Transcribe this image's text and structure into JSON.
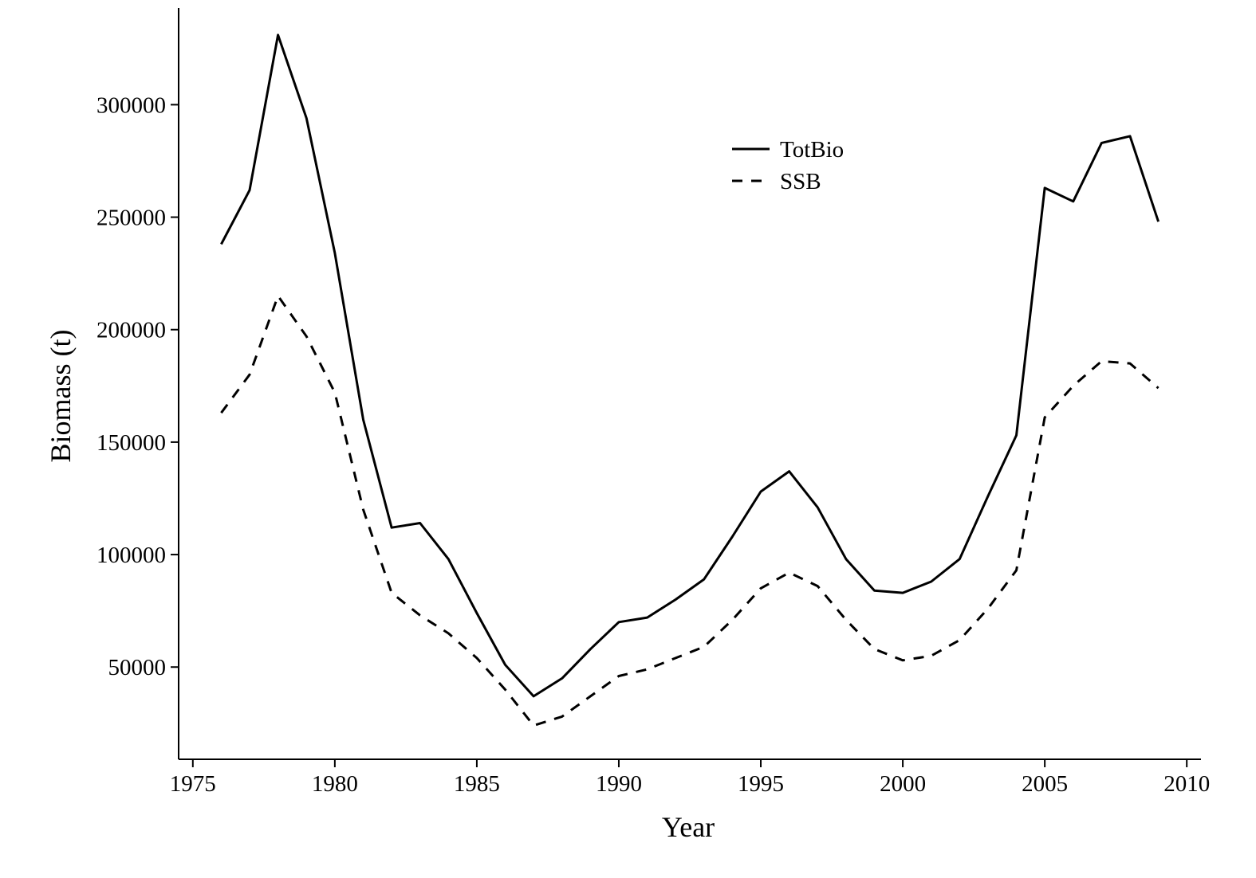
{
  "chart_data": {
    "type": "line",
    "title": "",
    "xlabel": "Year",
    "ylabel": "Biomass (t)",
    "xlim": [
      1974.5,
      2010.5
    ],
    "ylim": [
      9000,
      343000
    ],
    "xticks": [
      1975,
      1980,
      1985,
      1990,
      1995,
      2000,
      2005,
      2010
    ],
    "yticks": [
      50000,
      100000,
      150000,
      200000,
      250000,
      300000
    ],
    "xtick_labels": [
      "1975",
      "1980",
      "1985",
      "1990",
      "1995",
      "2000",
      "2005",
      "2010"
    ],
    "ytick_labels": [
      "50000",
      "100000",
      "150000",
      "200000",
      "250000",
      "300000"
    ],
    "grid": false,
    "legend_position": "top-right (inside plot)",
    "x": [
      1976,
      1977,
      1978,
      1979,
      1980,
      1981,
      1982,
      1983,
      1984,
      1985,
      1986,
      1987,
      1988,
      1989,
      1990,
      1991,
      1992,
      1993,
      1994,
      1995,
      1996,
      1997,
      1998,
      1999,
      2000,
      2001,
      2002,
      2003,
      2004,
      2005,
      2006,
      2007,
      2008,
      2009
    ],
    "series": [
      {
        "name": "TotBio",
        "line_style": "solid",
        "color": "#000000",
        "values": [
          238000,
          262000,
          331000,
          294000,
          234000,
          160000,
          112000,
          114000,
          98000,
          74000,
          51000,
          37000,
          45000,
          58000,
          70000,
          72000,
          80000,
          89000,
          108000,
          128000,
          137000,
          121000,
          98000,
          84000,
          83000,
          88000,
          98000,
          126000,
          153000,
          263000,
          257000,
          283000,
          286000,
          248000
        ]
      },
      {
        "name": "SSB",
        "line_style": "dashed",
        "color": "#000000",
        "values": [
          163000,
          180000,
          215000,
          197000,
          172000,
          120000,
          83000,
          73000,
          65000,
          54000,
          40000,
          24000,
          28000,
          37000,
          46000,
          49000,
          54000,
          59000,
          71000,
          85000,
          92000,
          86000,
          71000,
          58000,
          53000,
          55000,
          62000,
          76000,
          93000,
          161000,
          175000,
          186000,
          185000,
          174000
        ]
      }
    ]
  }
}
